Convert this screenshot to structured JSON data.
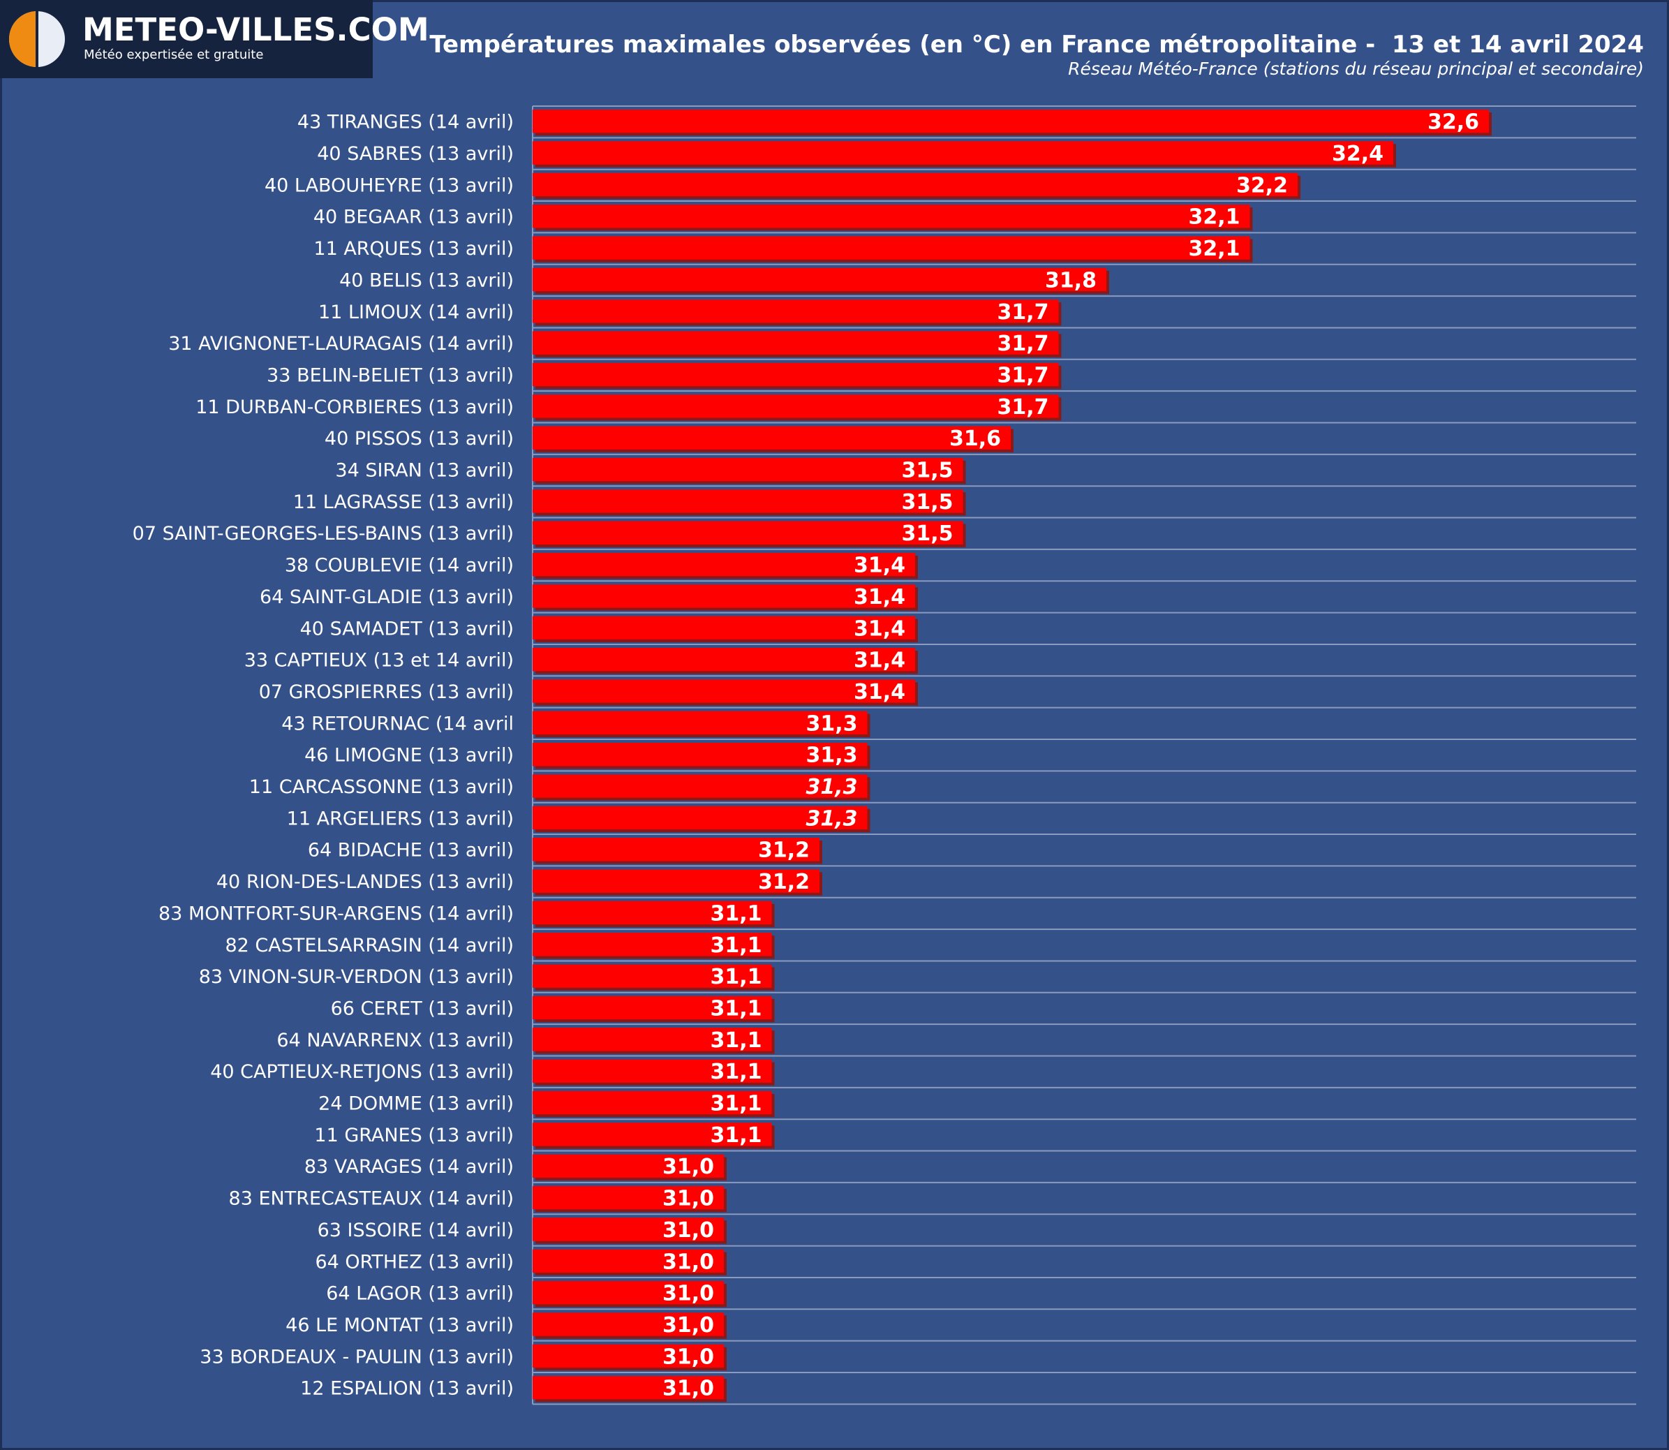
{
  "header": {
    "logo_name": "METEO-VILLES.COM",
    "logo_tagline": "Météo expertisée et gratuite",
    "title": "Températures maximales observées (en °C) en France métropolitaine -  13 et 14 avril 2024",
    "subtitle": "Réseau Météo-France (stations du réseau principal et secondaire)"
  },
  "colors": {
    "background": "#34518a",
    "bar": "#ff0000",
    "bar_shadow": "#8a1a1a",
    "value_text": "#ffffff",
    "grid": "#8b9bbd",
    "logo_accent": "#ef8a12"
  },
  "chart_data": {
    "type": "bar",
    "orientation": "horizontal",
    "title": "Températures maximales observées (en °C) en France métropolitaine -  13 et 14 avril 2024",
    "subtitle": "Réseau Météo-France (stations du réseau principal et secondaire)",
    "xlim": [
      30.6,
      33.5
    ],
    "grid": "horizontal row separators",
    "legend": "none",
    "categories": [
      "43 TIRANGES (14 avril)",
      "40 SABRES (13 avril)",
      "40 LABOUHEYRE (13 avril)",
      "40 BEGAAR (13 avril)",
      "11 ARQUES (13 avril)",
      "40 BELIS (13 avril)",
      "11 LIMOUX (14 avril)",
      "31 AVIGNONET-LAURAGAIS (14 avril)",
      "33 BELIN-BELIET (13 avril)",
      "11 DURBAN-CORBIERES (13 avril)",
      "40 PISSOS (13 avril)",
      "34 SIRAN (13 avril)",
      "11 LAGRASSE (13 avril)",
      "07 SAINT-GEORGES-LES-BAINS (13 avril)",
      "38 COUBLEVIE (14 avril)",
      "64 SAINT-GLADIE (13 avril)",
      "40 SAMADET (13 avril)",
      "33 CAPTIEUX (13 et 14 avril)",
      "07 GROSPIERRES (13 avril)",
      "43 RETOURNAC (14 avril",
      "46 LIMOGNE (13 avril)",
      "11 CARCASSONNE (13 avril)",
      "11 ARGELIERS (13 avril)",
      "64 BIDACHE (13 avril)",
      "40 RION-DES-LANDES (13 avril)",
      "83 MONTFORT-SUR-ARGENS (14 avril)",
      "82 CASTELSARRASIN (14 avril)",
      "83 VINON-SUR-VERDON (13 avril)",
      "66 CERET (13 avril)",
      "64 NAVARRENX (13 avril)",
      "40 CAPTIEUX-RETJONS (13 avril)",
      "24 DOMME (13 avril)",
      "11 GRANES (13 avril)",
      "83 VARAGES (14 avril)",
      "83 ENTRECASTEAUX (14 avril)",
      "63 ISSOIRE (14 avril)",
      "64 ORTHEZ (13 avril)",
      "64 LAGOR (13 avril)",
      "46 LE MONTAT (13 avril)",
      "33 BORDEAUX - PAULIN (13 avril)",
      "12 ESPALION (13 avril)"
    ],
    "values": [
      32.6,
      32.4,
      32.2,
      32.1,
      32.1,
      31.8,
      31.7,
      31.7,
      31.7,
      31.7,
      31.6,
      31.5,
      31.5,
      31.5,
      31.4,
      31.4,
      31.4,
      31.4,
      31.4,
      31.3,
      31.3,
      31.3,
      31.3,
      31.2,
      31.2,
      31.1,
      31.1,
      31.1,
      31.1,
      31.1,
      31.1,
      31.1,
      31.1,
      31.0,
      31.0,
      31.0,
      31.0,
      31.0,
      31.0,
      31.0,
      31.0
    ],
    "value_labels": [
      "32,6",
      "32,4",
      "32,2",
      "32,1",
      "32,1",
      "31,8",
      "31,7",
      "31,7",
      "31,7",
      "31,7",
      "31,6",
      "31,5",
      "31,5",
      "31,5",
      "31,4",
      "31,4",
      "31,4",
      "31,4",
      "31,4",
      "31,3",
      "31,3",
      "31,3",
      "31,3",
      "31,2",
      "31,2",
      "31,1",
      "31,1",
      "31,1",
      "31,1",
      "31,1",
      "31,1",
      "31,1",
      "31,1",
      "31,0",
      "31,0",
      "31,0",
      "31,0",
      "31,0",
      "31,0",
      "31,0",
      "31,0"
    ],
    "italic_value_labels": [
      21,
      22
    ]
  }
}
